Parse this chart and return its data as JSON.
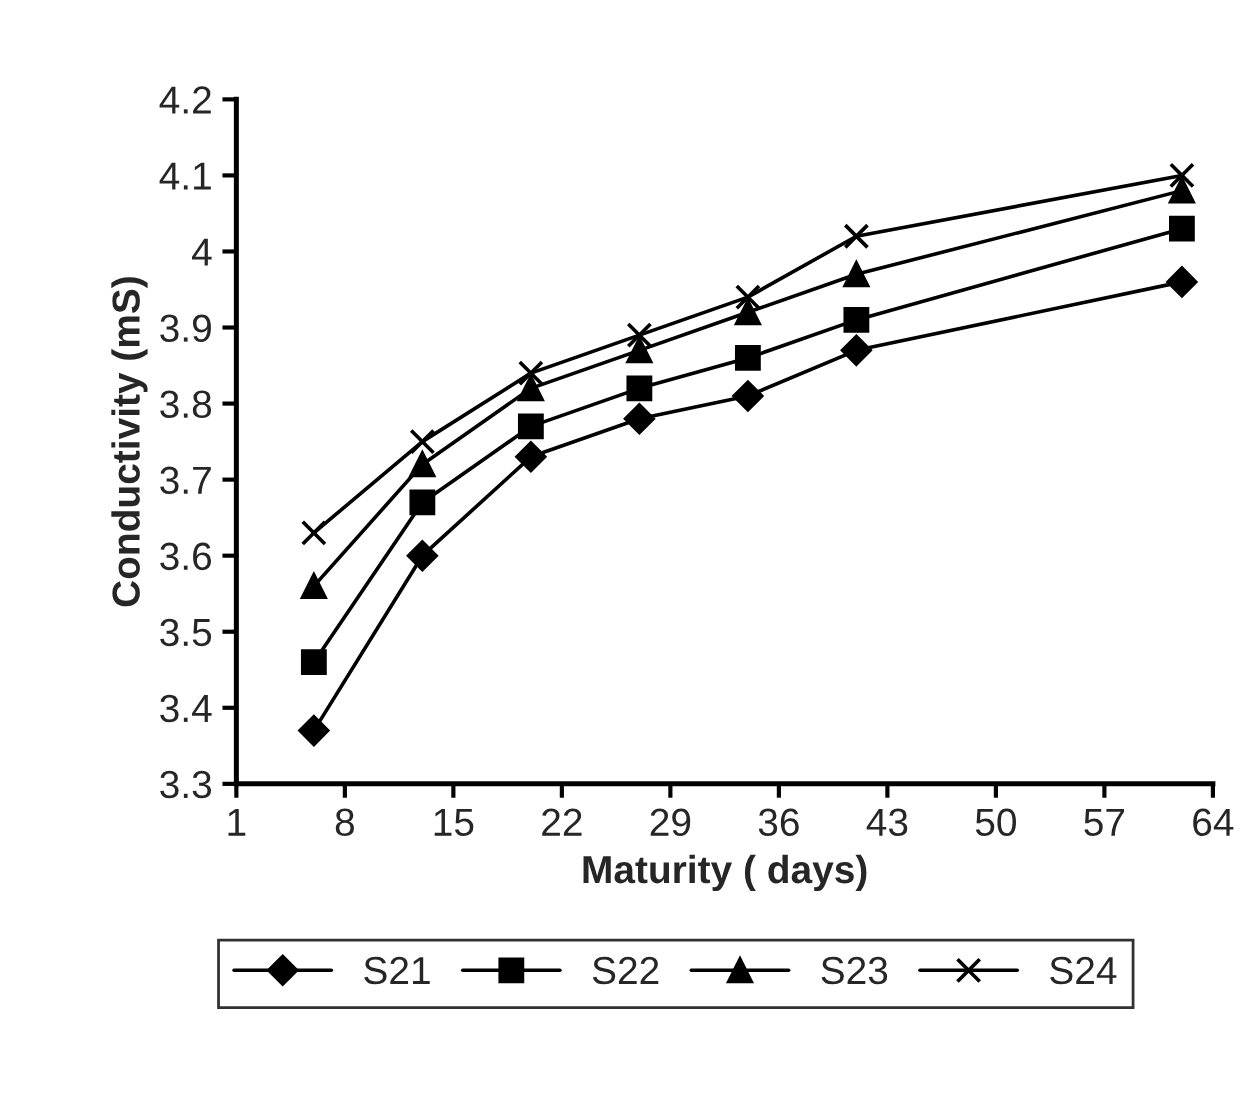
{
  "chart_data": {
    "type": "line",
    "xlabel": "Maturity ( days)",
    "ylabel": "Conductivity (mS)",
    "x": [
      6,
      13,
      20,
      27,
      34,
      41,
      62
    ],
    "series": [
      {
        "name": "S21",
        "color": "#000000",
        "marker": "diamond",
        "values": [
          3.37,
          3.6,
          3.73,
          3.78,
          3.81,
          3.87,
          3.96
        ]
      },
      {
        "name": "S22",
        "color": "#000000",
        "marker": "square",
        "values": [
          3.46,
          3.67,
          3.77,
          3.82,
          3.86,
          3.91,
          4.03
        ]
      },
      {
        "name": "S23",
        "color": "#000000",
        "marker": "triangle",
        "values": [
          3.56,
          3.72,
          3.82,
          3.87,
          3.92,
          3.97,
          4.08
        ]
      },
      {
        "name": "S24",
        "color": "#000000",
        "marker": "cross",
        "values": [
          3.63,
          3.75,
          3.84,
          3.89,
          3.94,
          4.02,
          4.1
        ]
      }
    ],
    "xlim": [
      1,
      64
    ],
    "xticks": [
      1,
      8,
      15,
      22,
      29,
      36,
      43,
      50,
      57,
      64
    ],
    "ylim": [
      3.3,
      4.2
    ],
    "yticks": [
      {
        "value": 3.3,
        "label": "3.3"
      },
      {
        "value": 3.4,
        "label": "3.4"
      },
      {
        "value": 3.5,
        "label": "3.5"
      },
      {
        "value": 3.6,
        "label": "3.6"
      },
      {
        "value": 3.7,
        "label": "3.7"
      },
      {
        "value": 3.8,
        "label": "3.8"
      },
      {
        "value": 3.9,
        "label": "3.9"
      },
      {
        "value": 4.0,
        "label": "4"
      },
      {
        "value": 4.1,
        "label": "4.1"
      },
      {
        "value": 4.2,
        "label": "4.2"
      }
    ],
    "grid": false,
    "legend": "bottom",
    "line_style": "solid"
  }
}
